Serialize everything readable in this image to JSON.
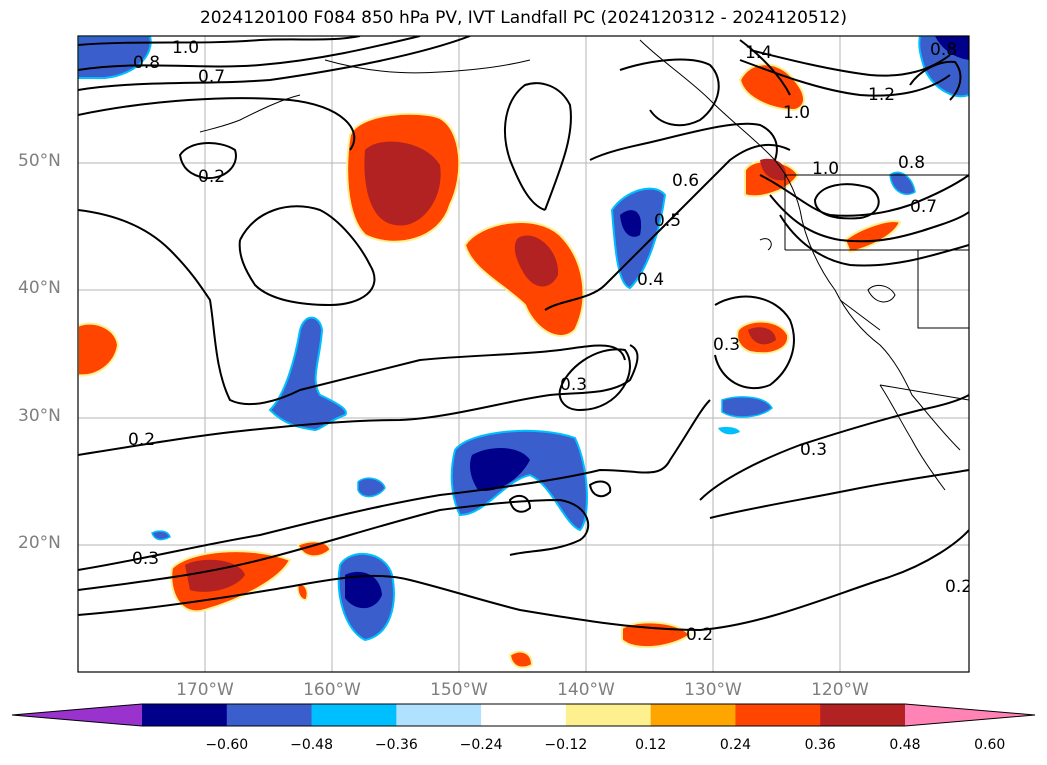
{
  "title": "2024120100 F084 850 hPa PV, IVT Landfall PC (2024120312 - 2024120512)",
  "latitude_labels": [
    "50°N",
    "40°N",
    "30°N",
    "20°N"
  ],
  "longitude_labels": [
    "170°W",
    "160°W",
    "150°W",
    "140°W",
    "130°W",
    "120°W"
  ],
  "contour_labels": [
    "1.0",
    "0.8",
    "0.7",
    "0.2",
    "0.2",
    "0.3",
    "0.3",
    "0.3",
    "0.3",
    "0.4",
    "0.5",
    "0.6",
    "1.0",
    "1.0",
    "1.2",
    "0.8",
    "0.7",
    "0.2",
    "0.2",
    "1.4",
    "0.8"
  ],
  "colorbar": {
    "ticks": [
      "−0.60",
      "−0.48",
      "−0.36",
      "−0.24",
      "−0.12",
      "0.12",
      "0.24",
      "0.36",
      "0.48",
      "0.60"
    ],
    "colors": [
      "#9a32cd",
      "#00008b",
      "#3a5fcd",
      "#00bfff",
      "#b0e2ff",
      "#ffffff",
      "#fff08f",
      "#ffa500",
      "#ff4500",
      "#b22222",
      "#ff83b4"
    ]
  }
}
